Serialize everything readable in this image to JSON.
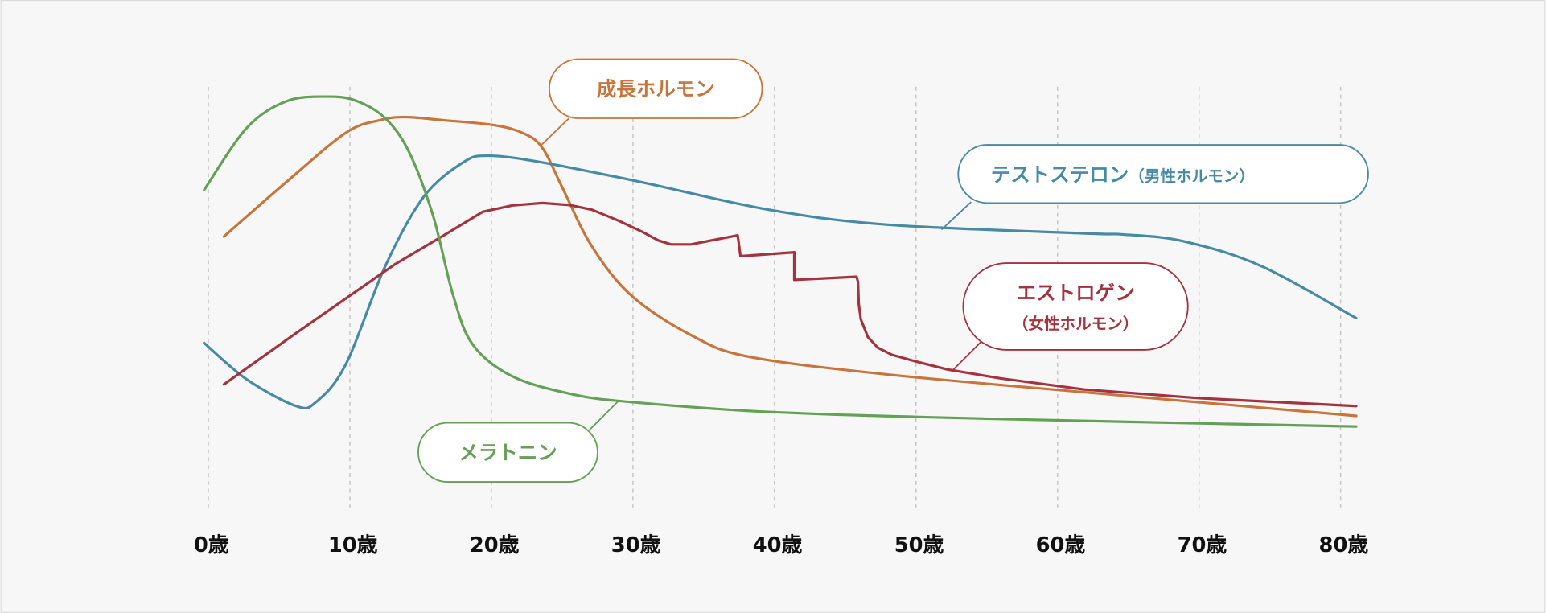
{
  "chart_data": {
    "type": "line",
    "title": "",
    "xlabel": "",
    "ylabel": "",
    "xlim": [
      0,
      80
    ],
    "ylim": [
      0,
      100
    ],
    "grid": "vertical dashed",
    "x_ticks": [
      0,
      10,
      20,
      30,
      40,
      50,
      60,
      70,
      80
    ],
    "x_tick_labels": [
      "0歳",
      "10歳",
      "20歳",
      "30歳",
      "40歳",
      "50歳",
      "60歳",
      "70歳",
      "80歳"
    ],
    "series": [
      {
        "name": "成長ホルモン",
        "subname": "",
        "color": "#c8743a",
        "smooth": true,
        "points": [
          [
            1.1,
            65
          ],
          [
            5.5,
            78.8
          ],
          [
            9.7,
            91.3
          ],
          [
            12.1,
            94.5
          ],
          [
            13.9,
            95.3
          ],
          [
            16.6,
            94.5
          ],
          [
            20.1,
            93.3
          ],
          [
            22.2,
            91.3
          ],
          [
            23.6,
            87.5
          ],
          [
            25,
            77.5
          ],
          [
            27.1,
            62.5
          ],
          [
            29.9,
            50
          ],
          [
            34.1,
            40
          ],
          [
            38.2,
            34.5
          ],
          [
            48,
            30
          ],
          [
            61.9,
            25.5
          ],
          [
            81.1,
            19.5
          ]
        ]
      },
      {
        "name": "テストステロン",
        "subname": "（男性ホルモン）",
        "color": "#468aa3",
        "smooth": true,
        "points": [
          [
            -0.3,
            38
          ],
          [
            2.7,
            28.8
          ],
          [
            6.2,
            22
          ],
          [
            7.6,
            23
          ],
          [
            9.7,
            32.5
          ],
          [
            12.5,
            57.5
          ],
          [
            15.2,
            75
          ],
          [
            18,
            83.8
          ],
          [
            19.8,
            85.5
          ],
          [
            23.6,
            83.8
          ],
          [
            30.6,
            78.8
          ],
          [
            39.6,
            71.8
          ],
          [
            48,
            68
          ],
          [
            61.9,
            65.8
          ],
          [
            64.7,
            65.5
          ],
          [
            68.9,
            63.8
          ],
          [
            74.4,
            57.5
          ],
          [
            81.1,
            44.3
          ]
        ]
      },
      {
        "name": "エストロゲン",
        "subname": "（女性ホルモン）",
        "color": "#a3333f",
        "smooth": false,
        "points": [
          [
            1.1,
            27.5
          ],
          [
            6.2,
            40.5
          ],
          [
            13.2,
            58
          ],
          [
            16.5,
            65
          ],
          [
            19.4,
            71.3
          ],
          [
            21.5,
            72.9
          ],
          [
            23.6,
            73.5
          ],
          [
            25.5,
            73
          ],
          [
            27.1,
            71.8
          ],
          [
            29,
            69
          ],
          [
            30.6,
            66.3
          ],
          [
            31.8,
            64
          ],
          [
            32.7,
            63
          ],
          [
            34.1,
            63
          ],
          [
            37.4,
            65.3
          ],
          [
            37.6,
            60
          ],
          [
            41.4,
            61
          ],
          [
            41.4,
            54
          ],
          [
            45.8,
            54.8
          ],
          [
            45.9,
            53.5
          ],
          [
            45.95,
            48
          ],
          [
            46.1,
            44
          ],
          [
            46.6,
            39.5
          ],
          [
            47.3,
            36.8
          ],
          [
            48.3,
            35
          ],
          [
            50,
            33.3
          ],
          [
            52.2,
            31.3
          ],
          [
            56,
            29
          ],
          [
            61.9,
            26.2
          ],
          [
            70,
            24
          ],
          [
            81.1,
            22
          ]
        ]
      },
      {
        "name": "メラトニン",
        "subname": "",
        "color": "#65a057",
        "smooth": true,
        "points": [
          [
            -0.3,
            76.8
          ],
          [
            2.7,
            92.5
          ],
          [
            5.5,
            99.3
          ],
          [
            8.3,
            100.5
          ],
          [
            10.4,
            99.5
          ],
          [
            12.5,
            95
          ],
          [
            14.2,
            86.3
          ],
          [
            15.9,
            70
          ],
          [
            17.3,
            50
          ],
          [
            18.7,
            37.5
          ],
          [
            21.5,
            29.5
          ],
          [
            25.7,
            25
          ],
          [
            29.9,
            23
          ],
          [
            39.6,
            20.5
          ],
          [
            54.9,
            18.8
          ],
          [
            81.1,
            16.8
          ]
        ]
      }
    ]
  }
}
